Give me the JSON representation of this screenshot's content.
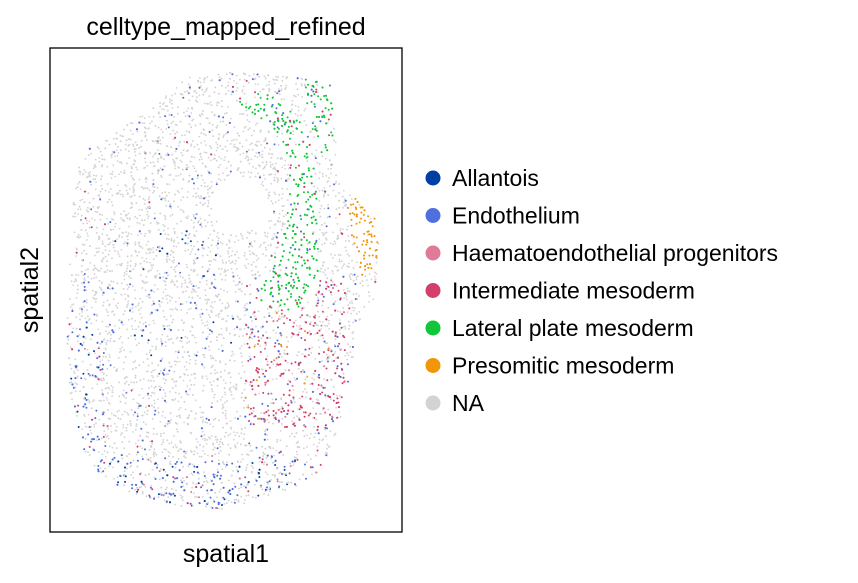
{
  "chart_data": {
    "type": "scatter",
    "title": "celltype_mapped_refined",
    "xlabel": "spatial1",
    "ylabel": "spatial2",
    "xticks": [],
    "yticks": [],
    "legend_position": "right",
    "series": [
      {
        "name": "Allantois",
        "color": "#023fa5"
      },
      {
        "name": "Endothelium",
        "color": "#4f6fdf"
      },
      {
        "name": "Haematoendothelial progenitors",
        "color": "#e07a97"
      },
      {
        "name": "Intermediate mesoderm",
        "color": "#d33f6a"
      },
      {
        "name": "Lateral plate mesoderm",
        "color": "#11c638"
      },
      {
        "name": "Presomitic mesoderm",
        "color": "#ef9708"
      },
      {
        "name": "NA",
        "color": "#d3d3d3"
      }
    ]
  }
}
